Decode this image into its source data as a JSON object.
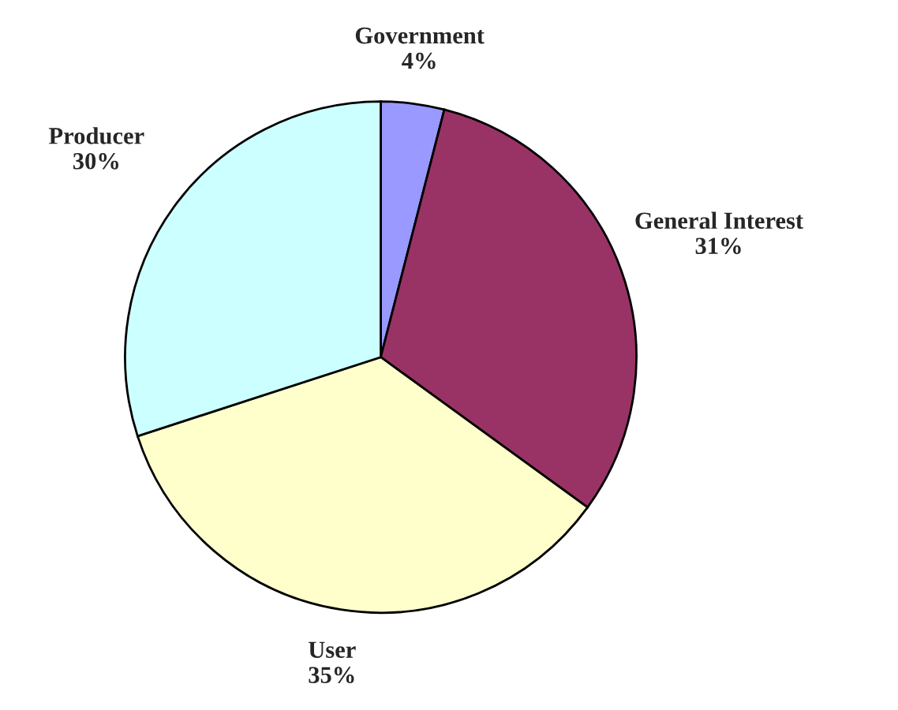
{
  "chart_data": {
    "type": "pie",
    "categories": [
      "Government",
      "General Interest",
      "User",
      "Producer"
    ],
    "values": [
      4,
      31,
      35,
      30
    ],
    "colors": [
      "#9999ff",
      "#993366",
      "#ffffcc",
      "#ccffff"
    ],
    "value_labels": [
      "4%",
      "31%",
      "35%",
      "30%"
    ],
    "legend": false
  }
}
